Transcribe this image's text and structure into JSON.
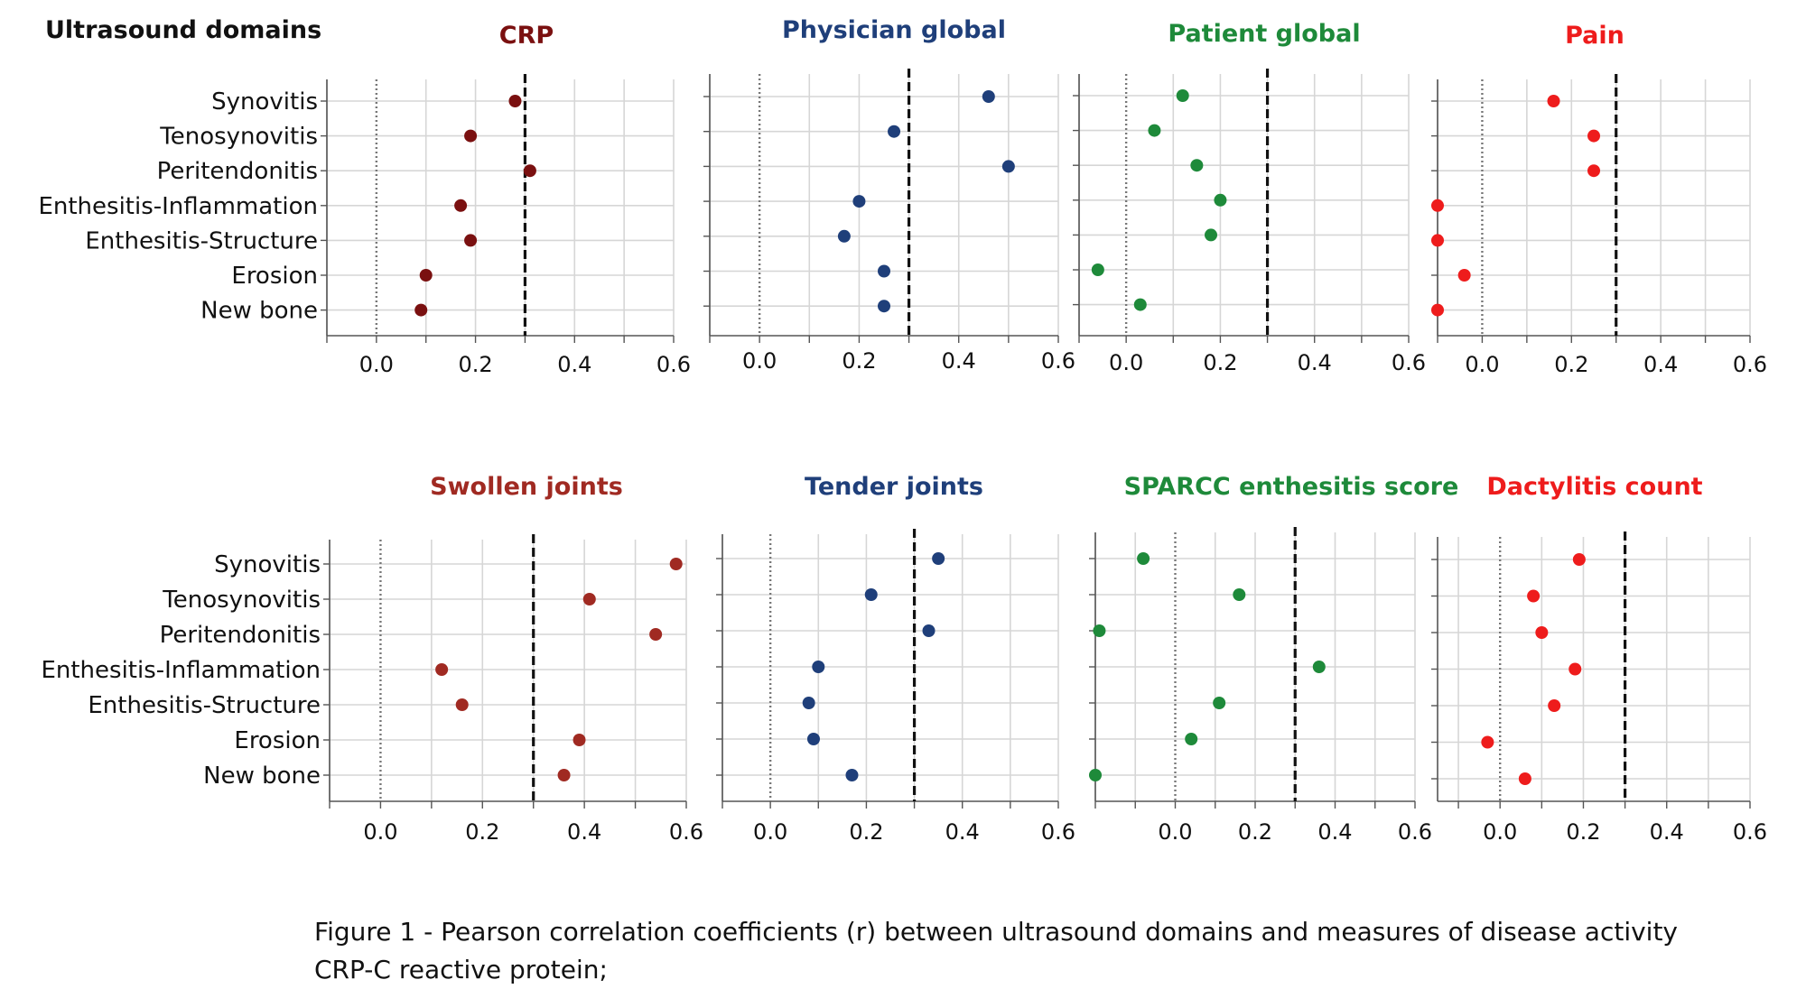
{
  "figure": {
    "row_header": "Ultrasound domains",
    "caption_line1": "Figure 1 - Pearson correlation coefficients (r) between ultrasound domains and measures of disease activity",
    "caption_line2": "CRP-C reactive protein;",
    "reference_line": 0.3,
    "zero_line": 0.0
  },
  "chart_data": [
    {
      "type": "scatter",
      "title": "CRP",
      "color": "#7a1010",
      "categories": [
        "Synovitis",
        "Tenosynovitis",
        "Peritendonitis",
        "Enthesitis-Inflammation",
        "Enthesitis-Structure",
        "Erosion",
        "New bone"
      ],
      "values": [
        0.28,
        0.19,
        0.31,
        0.17,
        0.19,
        0.1,
        0.09
      ],
      "xlim": [
        -0.1,
        0.6
      ],
      "xticks": [
        "0.0",
        "0.2",
        "0.4",
        "0.6"
      ],
      "reference_line": 0.3
    },
    {
      "type": "scatter",
      "title": "Physician global",
      "color": "#1f3f7a",
      "categories": [
        "Synovitis",
        "Tenosynovitis",
        "Peritendonitis",
        "Enthesitis-Inflammation",
        "Enthesitis-Structure",
        "Erosion",
        "New bone"
      ],
      "values": [
        0.46,
        0.27,
        0.5,
        0.2,
        0.17,
        0.25,
        0.25
      ],
      "xlim": [
        -0.1,
        0.6
      ],
      "xticks": [
        "0.0",
        "0.2",
        "0.4",
        "0.6"
      ],
      "reference_line": 0.3
    },
    {
      "type": "scatter",
      "title": "Patient global",
      "color": "#1e8a3a",
      "categories": [
        "Synovitis",
        "Tenosynovitis",
        "Peritendonitis",
        "Enthesitis-Inflammation",
        "Enthesitis-Structure",
        "Erosion",
        "New bone"
      ],
      "values": [
        0.12,
        0.06,
        0.15,
        0.2,
        0.18,
        -0.06,
        0.03
      ],
      "xlim": [
        -0.1,
        0.6
      ],
      "xticks": [
        "0.0",
        "0.2",
        "0.4",
        "0.6"
      ],
      "reference_line": 0.3
    },
    {
      "type": "scatter",
      "title": "Pain",
      "color": "#ee1c1c",
      "categories": [
        "Synovitis",
        "Tenosynovitis",
        "Peritendonitis",
        "Enthesitis-Inflammation",
        "Enthesitis-Structure",
        "Erosion",
        "New bone"
      ],
      "values": [
        0.16,
        0.25,
        0.25,
        -0.1,
        -0.1,
        -0.04,
        -0.1
      ],
      "xlim": [
        -0.1,
        0.6
      ],
      "xticks": [
        "0.0",
        "0.2",
        "0.4",
        "0.6"
      ],
      "reference_line": 0.3
    },
    {
      "type": "scatter",
      "title": "Swollen joints",
      "color": "#a02a22",
      "categories": [
        "Synovitis",
        "Tenosynovitis",
        "Peritendonitis",
        "Enthesitis-Inflammation",
        "Enthesitis-Structure",
        "Erosion",
        "New bone"
      ],
      "values": [
        0.58,
        0.41,
        0.54,
        0.12,
        0.16,
        0.39,
        0.36
      ],
      "xlim": [
        -0.1,
        0.6
      ],
      "xticks": [
        "0.0",
        "0.2",
        "0.4",
        "0.6"
      ],
      "reference_line": 0.3
    },
    {
      "type": "scatter",
      "title": "Tender joints",
      "color": "#1f3f7a",
      "categories": [
        "Synovitis",
        "Tenosynovitis",
        "Peritendonitis",
        "Enthesitis-Inflammation",
        "Enthesitis-Structure",
        "Erosion",
        "New bone"
      ],
      "values": [
        0.35,
        0.21,
        0.33,
        0.1,
        0.08,
        0.09,
        0.17
      ],
      "xlim": [
        -0.1,
        0.6
      ],
      "xticks": [
        "0.0",
        "0.2",
        "0.4",
        "0.6"
      ],
      "reference_line": 0.3
    },
    {
      "type": "scatter",
      "title": "SPARCC enthesitis score",
      "color": "#1e8a3a",
      "categories": [
        "Synovitis",
        "Tenosynovitis",
        "Peritendonitis",
        "Enthesitis-Inflammation",
        "Enthesitis-Structure",
        "Erosion",
        "New bone"
      ],
      "values": [
        -0.08,
        0.16,
        -0.19,
        0.36,
        0.11,
        0.04,
        -0.2
      ],
      "xlim": [
        -0.2,
        0.6
      ],
      "xticks": [
        "0.0",
        "0.2",
        "0.4",
        "0.6"
      ],
      "reference_line": 0.3
    },
    {
      "type": "scatter",
      "title": "Dactylitis count",
      "color": "#ee1c1c",
      "categories": [
        "Synovitis",
        "Tenosynovitis",
        "Peritendonitis",
        "Enthesitis-Inflammation",
        "Enthesitis-Structure",
        "Erosion",
        "New bone"
      ],
      "values": [
        0.19,
        0.08,
        0.1,
        0.18,
        0.13,
        -0.03,
        0.06
      ],
      "xlim": [
        -0.15,
        0.6
      ],
      "xticks": [
        "0.0",
        "0.2",
        "0.4",
        "0.6"
      ],
      "reference_line": 0.3
    }
  ]
}
